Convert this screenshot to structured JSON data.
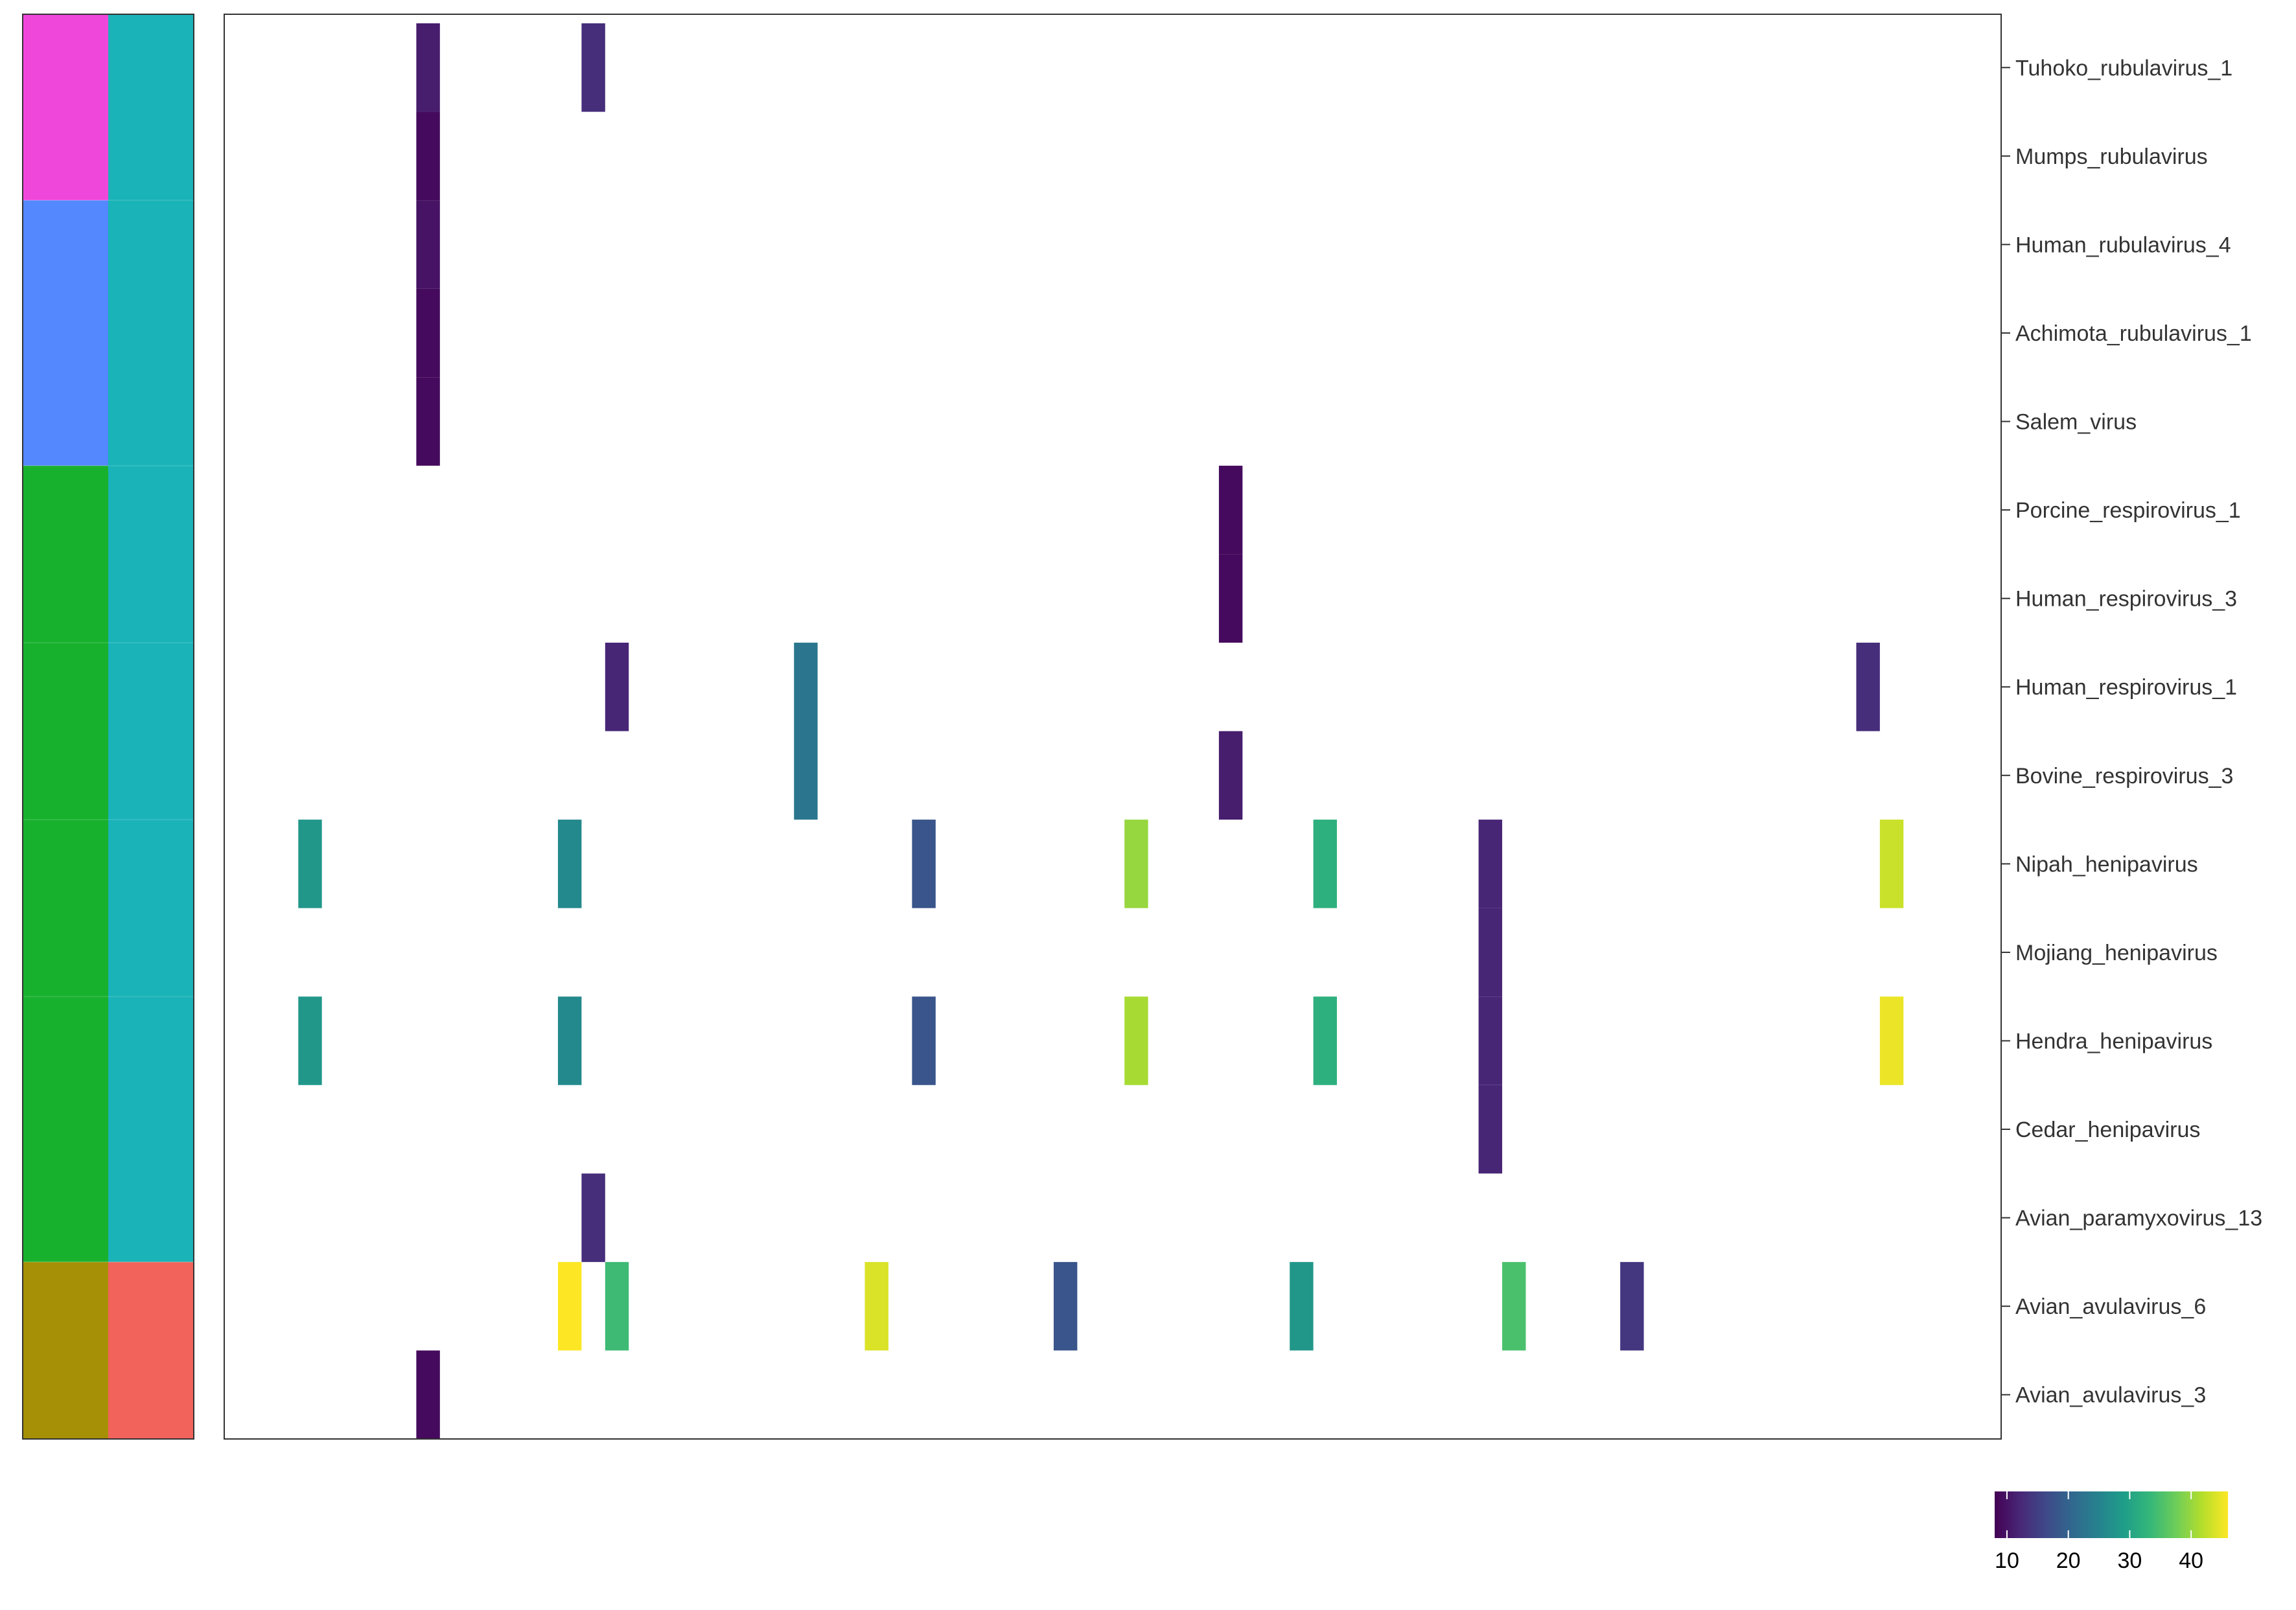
{
  "chart_data": {
    "type": "heatmap",
    "title": "",
    "xlabel": "",
    "ylabel": "",
    "rows": [
      "Tuhoko_rubulavirus_1",
      "Mumps_rubulavirus",
      "Human_rubulavirus_4",
      "Achimota_rubulavirus_1",
      "Salem_virus",
      "Porcine_respirovirus_1",
      "Human_respirovirus_3",
      "Human_respirovirus_1",
      "Bovine_respirovirus_3",
      "Nipah_henipavirus",
      "Mojiang_henipavirus",
      "Hendra_henipavirus",
      "Cedar_henipavirus",
      "Avian_paramyxovirus_13",
      "Avian_avulavirus_6",
      "Avian_avulavirus_3"
    ],
    "column_count": 75,
    "cells": [
      {
        "row": 0,
        "col": 8,
        "value": 11
      },
      {
        "row": 0,
        "col": 15,
        "value": 13
      },
      {
        "row": 1,
        "col": 8,
        "value": 9
      },
      {
        "row": 2,
        "col": 8,
        "value": 10
      },
      {
        "row": 3,
        "col": 8,
        "value": 9
      },
      {
        "row": 4,
        "col": 8,
        "value": 9
      },
      {
        "row": 5,
        "col": 42,
        "value": 9
      },
      {
        "row": 6,
        "col": 42,
        "value": 9
      },
      {
        "row": 7,
        "col": 16,
        "value": 12
      },
      {
        "row": 7,
        "col": 24,
        "value": 23
      },
      {
        "row": 7,
        "col": 69,
        "value": 13
      },
      {
        "row": 8,
        "col": 24,
        "value": 23
      },
      {
        "row": 8,
        "col": 42,
        "value": 11
      },
      {
        "row": 9,
        "col": 3,
        "value": 28
      },
      {
        "row": 9,
        "col": 14,
        "value": 26
      },
      {
        "row": 9,
        "col": 29,
        "value": 18
      },
      {
        "row": 9,
        "col": 38,
        "value": 40
      },
      {
        "row": 9,
        "col": 46,
        "value": 32
      },
      {
        "row": 9,
        "col": 53,
        "value": 12
      },
      {
        "row": 9,
        "col": 70,
        "value": 43
      },
      {
        "row": 10,
        "col": 53,
        "value": 12
      },
      {
        "row": 11,
        "col": 3,
        "value": 28
      },
      {
        "row": 11,
        "col": 14,
        "value": 26
      },
      {
        "row": 11,
        "col": 29,
        "value": 18
      },
      {
        "row": 11,
        "col": 38,
        "value": 41
      },
      {
        "row": 11,
        "col": 46,
        "value": 32
      },
      {
        "row": 11,
        "col": 53,
        "value": 12
      },
      {
        "row": 11,
        "col": 70,
        "value": 45
      },
      {
        "row": 12,
        "col": 53,
        "value": 12
      },
      {
        "row": 13,
        "col": 15,
        "value": 13
      },
      {
        "row": 14,
        "col": 14,
        "value": 46
      },
      {
        "row": 14,
        "col": 16,
        "value": 34
      },
      {
        "row": 14,
        "col": 27,
        "value": 44
      },
      {
        "row": 14,
        "col": 35,
        "value": 18
      },
      {
        "row": 14,
        "col": 45,
        "value": 28
      },
      {
        "row": 14,
        "col": 54,
        "value": 35
      },
      {
        "row": 14,
        "col": 59,
        "value": 14
      },
      {
        "row": 15,
        "col": 8,
        "value": 9
      }
    ],
    "color_scale": {
      "name": "viridis",
      "min": 8,
      "max": 46,
      "ticks": [
        "10",
        "20",
        "30",
        "40"
      ],
      "tick_values": [
        10,
        20,
        30,
        40
      ],
      "stops": [
        "#440154",
        "#482878",
        "#3E4A89",
        "#31688E",
        "#26828E",
        "#1F9E89",
        "#35B779",
        "#6DCD59",
        "#B4DE2C",
        "#FDE725"
      ]
    },
    "annotation_columns": [
      {
        "blocks": [
          {
            "from": 0,
            "to": 1,
            "color": "#F047DB"
          },
          {
            "from": 2,
            "to": 4,
            "color": "#5388FF"
          },
          {
            "from": 5,
            "to": 13,
            "color": "#18B12E"
          },
          {
            "from": 14,
            "to": 15,
            "color": "#A69006"
          }
        ]
      },
      {
        "blocks": [
          {
            "from": 0,
            "to": 13,
            "color": "#19B3B8"
          },
          {
            "from": 14,
            "to": 15,
            "color": "#F2635C"
          }
        ]
      }
    ],
    "row_block_boundaries": [
      2,
      5,
      7,
      9,
      11,
      14
    ]
  }
}
